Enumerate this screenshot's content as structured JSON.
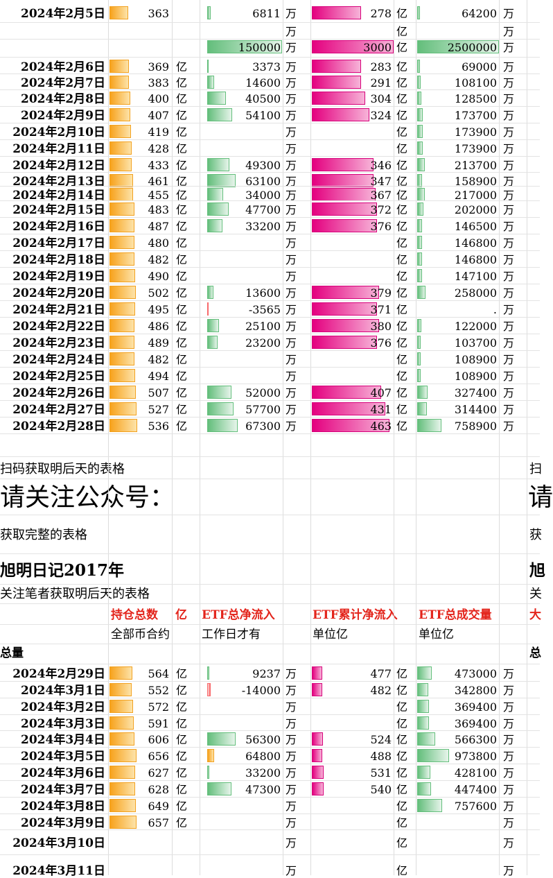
{
  "upper_rows": [
    {
      "date": "2024年2月5日",
      "hold": "363",
      "hold_unit": "",
      "hold_frac": 0.68,
      "etf": "6811",
      "etf_unit": "万",
      "etf_frac": 0.05,
      "etf_color": "green",
      "cum": "278",
      "cum_unit": "亿",
      "cum_frac": 0.6,
      "vol": "64200",
      "vol_unit": "万",
      "vol_frac": 0.03
    },
    {
      "date": "",
      "hold": "",
      "hold_unit": "",
      "hold_frac": 0,
      "etf": "",
      "etf_unit": "万",
      "etf_frac": 0,
      "etf_color": "green",
      "cum": "",
      "cum_unit": "亿",
      "cum_frac": 0,
      "vol": "",
      "vol_unit": "万",
      "vol_frac": 0
    },
    {
      "date": "",
      "hold": "",
      "hold_unit": "",
      "hold_frac": 0,
      "etf": "150000",
      "etf_unit": "万",
      "etf_frac": 1,
      "etf_color": "green",
      "cum": "3000",
      "cum_unit": "亿",
      "cum_frac": 1,
      "vol": "2500000",
      "vol_unit": "万",
      "vol_frac": 1
    },
    {
      "date": "2024年2月6日",
      "hold": "369",
      "hold_unit": "亿",
      "hold_frac": 0.69,
      "etf": "3373",
      "etf_unit": "万",
      "etf_frac": 0.02,
      "etf_color": "green",
      "cum": "283",
      "cum_unit": "亿",
      "cum_frac": 0.6,
      "vol": "69000",
      "vol_unit": "万",
      "vol_frac": 0.03
    },
    {
      "date": "2024年2月7日",
      "hold": "383",
      "hold_unit": "亿",
      "hold_frac": 0.71,
      "etf": "14600",
      "etf_unit": "万",
      "etf_frac": 0.09,
      "etf_color": "green",
      "cum": "291",
      "cum_unit": "亿",
      "cum_frac": 0.6,
      "vol": "108100",
      "vol_unit": "万",
      "vol_frac": 0.04
    },
    {
      "date": "2024年2月8日",
      "hold": "400",
      "hold_unit": "亿",
      "hold_frac": 0.75,
      "etf": "40500",
      "etf_unit": "万",
      "etf_frac": 0.25,
      "etf_color": "green",
      "cum": "304",
      "cum_unit": "亿",
      "cum_frac": 0.65,
      "vol": "128500",
      "vol_unit": "万",
      "vol_frac": 0.05
    },
    {
      "date": "2024年2月9日",
      "hold": "407",
      "hold_unit": "亿",
      "hold_frac": 0.76,
      "etf": "54100",
      "etf_unit": "万",
      "etf_frac": 0.33,
      "etf_color": "green",
      "cum": "324",
      "cum_unit": "亿",
      "cum_frac": 0.7,
      "vol": "173700",
      "vol_unit": "万",
      "vol_frac": 0.07
    },
    {
      "date": "2024年2月10日",
      "hold": "419",
      "hold_unit": "亿",
      "hold_frac": 0.78,
      "etf": "",
      "etf_unit": "万",
      "etf_frac": 0,
      "etf_color": "green",
      "cum": "",
      "cum_unit": "亿",
      "cum_frac": 0,
      "vol": "173900",
      "vol_unit": "万",
      "vol_frac": 0.07
    },
    {
      "date": "2024年2月11日",
      "hold": "428",
      "hold_unit": "亿",
      "hold_frac": 0.8,
      "etf": "",
      "etf_unit": "万",
      "etf_frac": 0,
      "etf_color": "green",
      "cum": "",
      "cum_unit": "亿",
      "cum_frac": 0,
      "vol": "173900",
      "vol_unit": "万",
      "vol_frac": 0.07
    },
    {
      "date": "2024年2月12日",
      "hold": "433",
      "hold_unit": "亿",
      "hold_frac": 0.81,
      "etf": "49300",
      "etf_unit": "万",
      "etf_frac": 0.3,
      "etf_color": "green",
      "cum": "346",
      "cum_unit": "亿",
      "cum_frac": 0.75,
      "vol": "213700",
      "vol_unit": "万",
      "vol_frac": 0.09
    },
    {
      "date": "2024年2月13日",
      "hold": "461",
      "hold_unit": "亿",
      "hold_frac": 0.86,
      "etf": "63100",
      "etf_unit": "万",
      "etf_frac": 0.38,
      "etf_color": "green",
      "cum": "347",
      "cum_unit": "亿",
      "cum_frac": 0.75,
      "vol": "158900",
      "vol_unit": "万",
      "vol_frac": 0.06
    },
    {
      "date": "2024年2月14日",
      "hold": "455",
      "hold_unit": "亿",
      "hold_frac": 0.85,
      "etf": "34000",
      "etf_unit": "万",
      "etf_frac": 0.21,
      "etf_color": "green",
      "cum": "367",
      "cum_unit": "亿",
      "cum_frac": 0.78,
      "vol": "217000",
      "vol_unit": "万",
      "vol_frac": 0.09
    },
    {
      "date": "2024年2月15日",
      "hold": "483",
      "hold_unit": "亿",
      "hold_frac": 0.9,
      "etf": "47700",
      "etf_unit": "万",
      "etf_frac": 0.29,
      "etf_color": "green",
      "cum": "372",
      "cum_unit": "亿",
      "cum_frac": 0.8,
      "vol": "202000",
      "vol_unit": "万",
      "vol_frac": 0.08
    },
    {
      "date": "2024年2月16日",
      "hold": "487",
      "hold_unit": "亿",
      "hold_frac": 0.91,
      "etf": "33200",
      "etf_unit": "万",
      "etf_frac": 0.2,
      "etf_color": "green",
      "cum": "376",
      "cum_unit": "亿",
      "cum_frac": 0.8,
      "vol": "146500",
      "vol_unit": "万",
      "vol_frac": 0.06
    },
    {
      "date": "2024年2月17日",
      "hold": "480",
      "hold_unit": "亿",
      "hold_frac": 0.9,
      "etf": "",
      "etf_unit": "万",
      "etf_frac": 0,
      "etf_color": "green",
      "cum": "",
      "cum_unit": "亿",
      "cum_frac": 0,
      "vol": "146800",
      "vol_unit": "万",
      "vol_frac": 0.06
    },
    {
      "date": "2024年2月18日",
      "hold": "482",
      "hold_unit": "亿",
      "hold_frac": 0.9,
      "etf": "",
      "etf_unit": "万",
      "etf_frac": 0,
      "etf_color": "green",
      "cum": "",
      "cum_unit": "亿",
      "cum_frac": 0,
      "vol": "146800",
      "vol_unit": "万",
      "vol_frac": 0.06
    },
    {
      "date": "2024年2月19日",
      "hold": "490",
      "hold_unit": "亿",
      "hold_frac": 0.92,
      "etf": "",
      "etf_unit": "万",
      "etf_frac": 0,
      "etf_color": "green",
      "cum": "",
      "cum_unit": "亿",
      "cum_frac": 0,
      "vol": "147100",
      "vol_unit": "万",
      "vol_frac": 0.06
    },
    {
      "date": "2024年2月20日",
      "hold": "502",
      "hold_unit": "亿",
      "hold_frac": 0.94,
      "etf": "13600",
      "etf_unit": "万",
      "etf_frac": 0.08,
      "etf_color": "green",
      "cum": "379",
      "cum_unit": "亿",
      "cum_frac": 0.82,
      "vol": "258000",
      "vol_unit": "万",
      "vol_frac": 0.1
    },
    {
      "date": "2024年2月21日",
      "hold": "495",
      "hold_unit": "亿",
      "hold_frac": 0.92,
      "etf": "-3565",
      "etf_unit": "万",
      "etf_frac": 0.02,
      "etf_color": "red",
      "cum": "371",
      "cum_unit": "亿",
      "cum_frac": 0.8,
      "vol": ".",
      "vol_unit": "万",
      "vol_frac": 0
    },
    {
      "date": "2024年2月22日",
      "hold": "486",
      "hold_unit": "亿",
      "hold_frac": 0.91,
      "etf": "25100",
      "etf_unit": "万",
      "etf_frac": 0.16,
      "etf_color": "green",
      "cum": "380",
      "cum_unit": "亿",
      "cum_frac": 0.82,
      "vol": "122000",
      "vol_unit": "万",
      "vol_frac": 0.05
    },
    {
      "date": "2024年2月23日",
      "hold": "489",
      "hold_unit": "亿",
      "hold_frac": 0.91,
      "etf": "23200",
      "etf_unit": "万",
      "etf_frac": 0.14,
      "etf_color": "green",
      "cum": "376",
      "cum_unit": "亿",
      "cum_frac": 0.8,
      "vol": "103700",
      "vol_unit": "万",
      "vol_frac": 0.04
    },
    {
      "date": "2024年2月24日",
      "hold": "482",
      "hold_unit": "亿",
      "hold_frac": 0.9,
      "etf": "",
      "etf_unit": "万",
      "etf_frac": 0,
      "etf_color": "green",
      "cum": "",
      "cum_unit": "亿",
      "cum_frac": 0,
      "vol": "108900",
      "vol_unit": "万",
      "vol_frac": 0.04
    },
    {
      "date": "2024年2月25日",
      "hold": "494",
      "hold_unit": "亿",
      "hold_frac": 0.92,
      "etf": "",
      "etf_unit": "万",
      "etf_frac": 0,
      "etf_color": "green",
      "cum": "",
      "cum_unit": "亿",
      "cum_frac": 0,
      "vol": "108900",
      "vol_unit": "万",
      "vol_frac": 0.04
    },
    {
      "date": "2024年2月26日",
      "hold": "507",
      "hold_unit": "亿",
      "hold_frac": 0.95,
      "etf": "52000",
      "etf_unit": "万",
      "etf_frac": 0.32,
      "etf_color": "green",
      "cum": "407",
      "cum_unit": "亿",
      "cum_frac": 0.85,
      "vol": "327400",
      "vol_unit": "万",
      "vol_frac": 0.13
    },
    {
      "date": "2024年2月27日",
      "hold": "527",
      "hold_unit": "亿",
      "hold_frac": 0.98,
      "etf": "57700",
      "etf_unit": "万",
      "etf_frac": 0.35,
      "etf_color": "green",
      "cum": "431",
      "cum_unit": "亿",
      "cum_frac": 0.9,
      "vol": "314400",
      "vol_unit": "万",
      "vol_frac": 0.12
    },
    {
      "date": "2024年2月28日",
      "hold": "536",
      "hold_unit": "亿",
      "hold_frac": 1,
      "etf": "67300",
      "etf_unit": "万",
      "etf_frac": 0.41,
      "etf_color": "green",
      "cum": "463",
      "cum_unit": "亿",
      "cum_frac": 0.95,
      "vol": "758900",
      "vol_unit": "万",
      "vol_frac": 0.3
    }
  ],
  "notes": {
    "scan": "扫码获取明后天的表格",
    "follow": "请关注公众号：",
    "full": "获取完整的表格",
    "diary": "旭明日记2017年",
    "author": "关注笔者获取明后天的表格",
    "scan_r": "扫",
    "follow_r": "请",
    "full_r": "获",
    "diary_r": "旭",
    "author_r": "关"
  },
  "headers": {
    "hold": "持仓总数",
    "hold_unit": "亿",
    "etf": "ETF总净流入",
    "cum": "ETF累计净流入",
    "vol": "ETF总成交量",
    "extra": "大"
  },
  "subheaders": {
    "hold": "全部币合约",
    "etf": "工作日才有",
    "cum": "单位亿",
    "vol": "单位亿"
  },
  "total_label": "总量",
  "total_label_r": "总",
  "lower_rows": [
    {
      "date": "2024年2月29日",
      "hold": "564",
      "hold_unit": "亿",
      "hold_frac": 0.83,
      "etf": "9237",
      "etf_unit": "万",
      "etf_frac": 0.06,
      "etf_color": "green",
      "cum": "477",
      "cum_unit": "亿",
      "cum_frac": 0.75,
      "vol": "473000",
      "vol_unit": "万",
      "vol_frac": 0.46
    },
    {
      "date": "2024年3月1日",
      "hold": "552",
      "hold_unit": "亿",
      "hold_frac": 0.81,
      "etf": "-14000",
      "etf_unit": "万",
      "etf_frac": 0.1,
      "etf_color": "red",
      "cum": "482",
      "cum_unit": "亿",
      "cum_frac": 0.76,
      "vol": "342800",
      "vol_unit": "万",
      "vol_frac": 0.34
    },
    {
      "date": "2024年3月2日",
      "hold": "572",
      "hold_unit": "亿",
      "hold_frac": 0.84,
      "etf": "",
      "etf_unit": "万",
      "etf_frac": 0,
      "etf_color": "green",
      "cum": "",
      "cum_unit": "亿",
      "cum_frac": 0,
      "vol": "369400",
      "vol_unit": "万",
      "vol_frac": 0.36
    },
    {
      "date": "2024年3月3日",
      "hold": "591",
      "hold_unit": "亿",
      "hold_frac": 0.87,
      "etf": "",
      "etf_unit": "万",
      "etf_frac": 0,
      "etf_color": "green",
      "cum": "",
      "cum_unit": "亿",
      "cum_frac": 0,
      "vol": "369400",
      "vol_unit": "万",
      "vol_frac": 0.36
    },
    {
      "date": "2024年3月4日",
      "hold": "606",
      "hold_unit": "亿",
      "hold_frac": 0.89,
      "etf": "56300",
      "etf_unit": "万",
      "etf_frac": 0.82,
      "etf_color": "green",
      "cum": "524",
      "cum_unit": "亿",
      "cum_frac": 0.82,
      "vol": "566300",
      "vol_unit": "万",
      "vol_frac": 0.57
    },
    {
      "date": "2024年3月5日",
      "hold": "656",
      "hold_unit": "亿",
      "hold_frac": 0.97,
      "etf": "64800",
      "etf_unit": "万",
      "etf_frac": 0.2,
      "etf_color": "orange",
      "cum": "488",
      "cum_unit": "亿",
      "cum_frac": 0.77,
      "vol": "973800",
      "vol_unit": "万",
      "vol_frac": 1
    },
    {
      "date": "2024年3月6日",
      "hold": "627",
      "hold_unit": "亿",
      "hold_frac": 0.92,
      "etf": "33200",
      "etf_unit": "万",
      "etf_frac": 0.05,
      "etf_color": "green",
      "cum": "531",
      "cum_unit": "亿",
      "cum_frac": 0.83,
      "vol": "428100",
      "vol_unit": "万",
      "vol_frac": 0.42
    },
    {
      "date": "2024年3月7日",
      "hold": "628",
      "hold_unit": "亿",
      "hold_frac": 0.93,
      "etf": "47300",
      "etf_unit": "万",
      "etf_frac": 0.7,
      "etf_color": "green",
      "cum": "540",
      "cum_unit": "亿",
      "cum_frac": 0.85,
      "vol": "447400",
      "vol_unit": "万",
      "vol_frac": 0.44
    },
    {
      "date": "2024年3月8日",
      "hold": "649",
      "hold_unit": "亿",
      "hold_frac": 0.96,
      "etf": "",
      "etf_unit": "万",
      "etf_frac": 0,
      "etf_color": "green",
      "cum": "",
      "cum_unit": "亿",
      "cum_frac": 0,
      "vol": "757600",
      "vol_unit": "万",
      "vol_frac": 0.78
    },
    {
      "date": "2024年3月9日",
      "hold": "657",
      "hold_unit": "亿",
      "hold_frac": 0.97,
      "etf": "",
      "etf_unit": "万",
      "etf_frac": 0,
      "etf_color": "green",
      "cum": "",
      "cum_unit": "亿",
      "cum_frac": 0,
      "vol": "",
      "vol_unit": "万",
      "vol_frac": 0
    }
  ],
  "tail_rows": [
    {
      "date": "2024年3月10日",
      "etf_unit": "万",
      "cum_unit": "亿",
      "vol_unit": "万"
    },
    {
      "date": "2024年3月11日",
      "etf_unit": "万",
      "cum_unit": "亿",
      "vol_unit": "万"
    }
  ],
  "colors": {
    "hold_bar": "#f7a21c",
    "etf_bar": "#63be7b",
    "cum_bar": "#e4007f",
    "neg_bar": "#f8696b",
    "header_text": "#e3241b"
  }
}
